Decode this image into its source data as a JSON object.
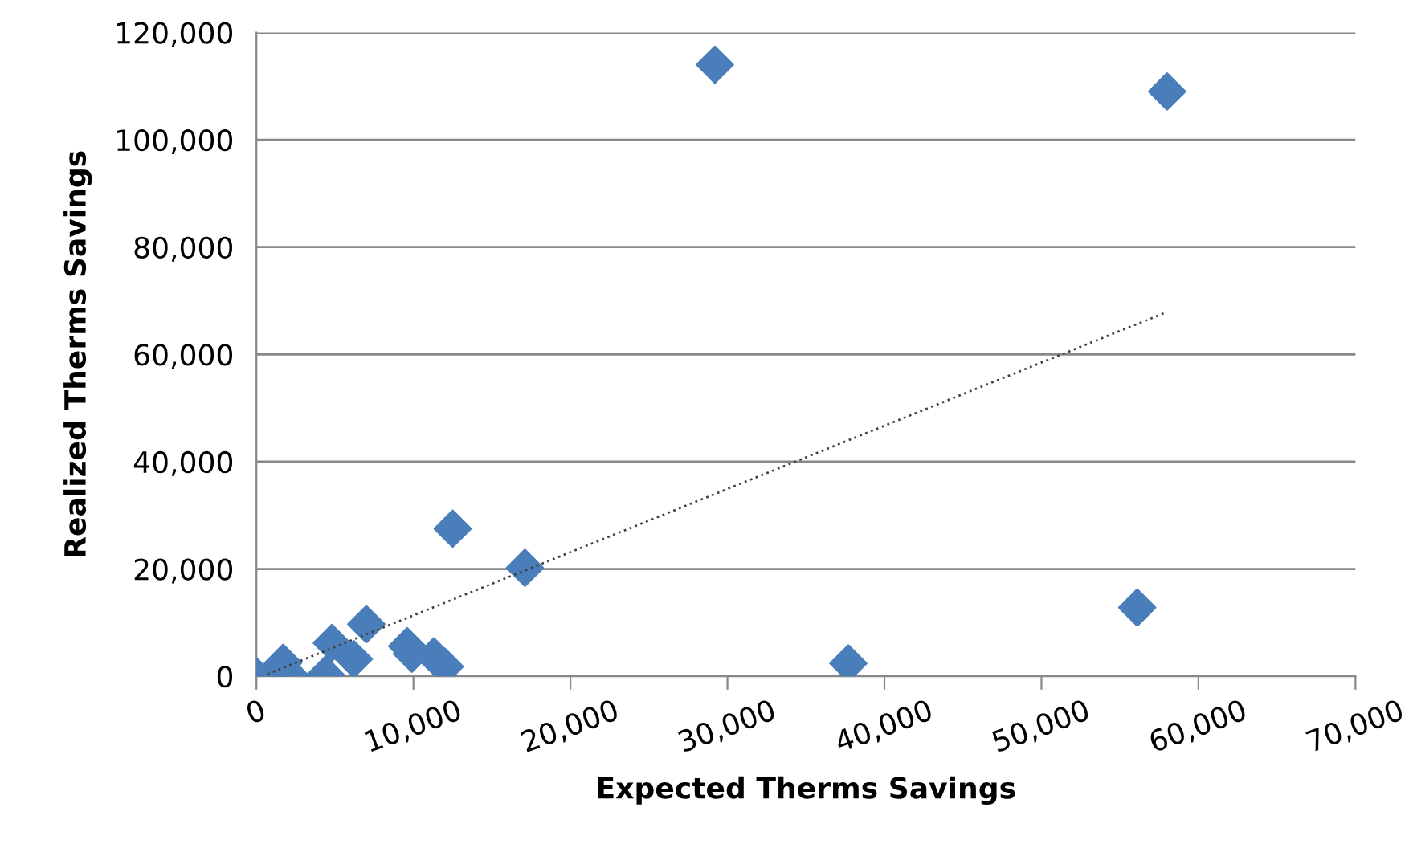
{
  "chart_data": {
    "type": "scatter",
    "xlabel": "Expected Therms Savings",
    "ylabel": "Realized Therms Savings",
    "xlim": [
      0,
      70000
    ],
    "xticks": [
      {
        "value": 0,
        "label": "0"
      },
      {
        "value": 10000,
        "label": "10,000"
      },
      {
        "value": 20000,
        "label": "20,000"
      },
      {
        "value": 30000,
        "label": "30,000"
      },
      {
        "value": 40000,
        "label": "40,000"
      },
      {
        "value": 50000,
        "label": "50,000"
      },
      {
        "value": 60000,
        "label": "60,000"
      },
      {
        "value": 70000,
        "label": "70,000"
      }
    ],
    "ylim": [
      0,
      120000
    ],
    "yticks": [
      {
        "value": 0,
        "label": "0"
      },
      {
        "value": 20000,
        "label": "20,000"
      },
      {
        "value": 40000,
        "label": "40,000"
      },
      {
        "value": 60000,
        "label": "60,000"
      },
      {
        "value": 80000,
        "label": "80,000"
      },
      {
        "value": 100000,
        "label": "100,000"
      },
      {
        "value": 120000,
        "label": "120,000"
      }
    ],
    "grid": "y",
    "series": [
      {
        "color": "#4a7ebb",
        "marker": "diamond",
        "x": [
          29200,
          58000,
          56100,
          37700,
          17100,
          12500,
          7000,
          4800,
          6200,
          4400,
          9600,
          9900,
          11300,
          12000,
          1700,
          2200,
          0,
          900
        ],
        "values": [
          114000,
          109000,
          12800,
          2400,
          20200,
          27500,
          9700,
          6200,
          3200,
          300,
          5600,
          4200,
          3700,
          1800,
          2500,
          0,
          0,
          0
        ]
      },
      {
        "type": "line",
        "color": "#404040",
        "line_style": "dotted",
        "marker": "none",
        "x": [
          700,
          57900
        ],
        "values": [
          400,
          67800
        ]
      }
    ]
  }
}
